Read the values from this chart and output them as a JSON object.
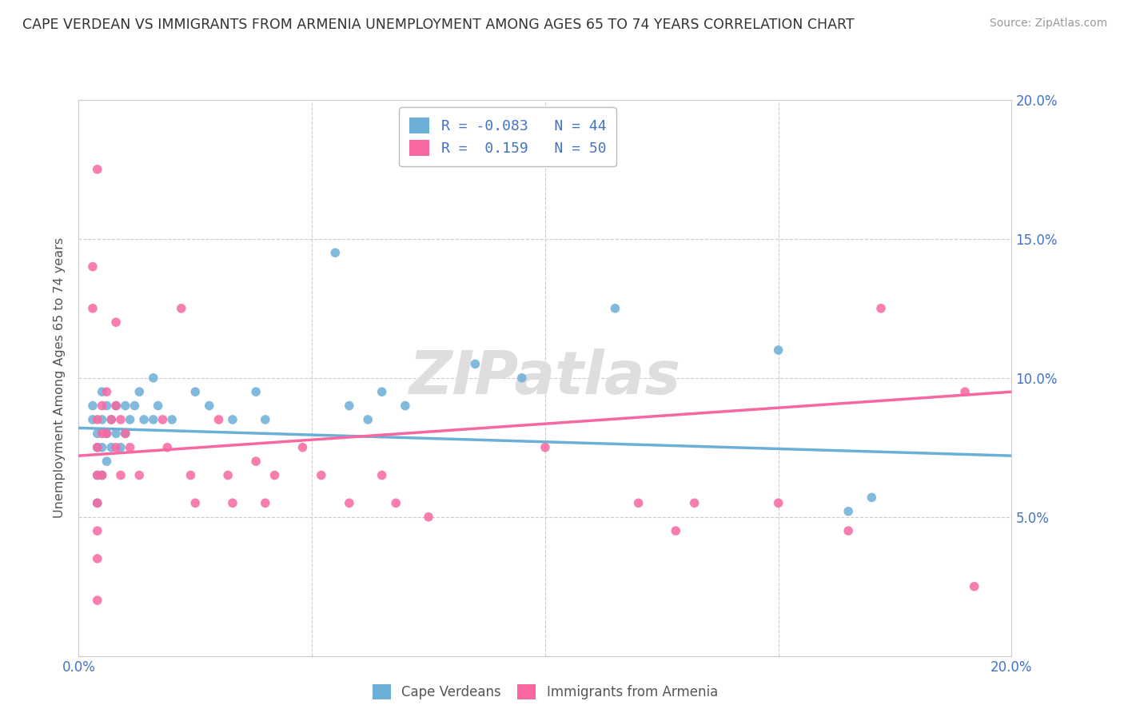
{
  "title": "CAPE VERDEAN VS IMMIGRANTS FROM ARMENIA UNEMPLOYMENT AMONG AGES 65 TO 74 YEARS CORRELATION CHART",
  "source": "Source: ZipAtlas.com",
  "ylabel": "Unemployment Among Ages 65 to 74 years",
  "xlim": [
    0.0,
    0.2
  ],
  "ylim": [
    0.0,
    0.2
  ],
  "legend_r1": "-0.083",
  "legend_n1": "44",
  "legend_r2": "0.159",
  "legend_n2": "50",
  "color_blue": "#6baed6",
  "color_pink": "#f768a1",
  "watermark": "ZIPatlas",
  "blue_scatter": [
    [
      0.003,
      0.085
    ],
    [
      0.003,
      0.09
    ],
    [
      0.004,
      0.075
    ],
    [
      0.004,
      0.08
    ],
    [
      0.004,
      0.065
    ],
    [
      0.004,
      0.055
    ],
    [
      0.005,
      0.095
    ],
    [
      0.005,
      0.085
    ],
    [
      0.005,
      0.075
    ],
    [
      0.005,
      0.065
    ],
    [
      0.006,
      0.09
    ],
    [
      0.006,
      0.08
    ],
    [
      0.006,
      0.07
    ],
    [
      0.007,
      0.085
    ],
    [
      0.007,
      0.075
    ],
    [
      0.008,
      0.09
    ],
    [
      0.008,
      0.08
    ],
    [
      0.009,
      0.075
    ],
    [
      0.01,
      0.09
    ],
    [
      0.01,
      0.08
    ],
    [
      0.011,
      0.085
    ],
    [
      0.012,
      0.09
    ],
    [
      0.013,
      0.095
    ],
    [
      0.014,
      0.085
    ],
    [
      0.016,
      0.1
    ],
    [
      0.016,
      0.085
    ],
    [
      0.017,
      0.09
    ],
    [
      0.02,
      0.085
    ],
    [
      0.025,
      0.095
    ],
    [
      0.028,
      0.09
    ],
    [
      0.033,
      0.085
    ],
    [
      0.038,
      0.095
    ],
    [
      0.04,
      0.085
    ],
    [
      0.055,
      0.145
    ],
    [
      0.058,
      0.09
    ],
    [
      0.062,
      0.085
    ],
    [
      0.065,
      0.095
    ],
    [
      0.07,
      0.09
    ],
    [
      0.085,
      0.105
    ],
    [
      0.095,
      0.1
    ],
    [
      0.115,
      0.125
    ],
    [
      0.15,
      0.11
    ],
    [
      0.165,
      0.052
    ],
    [
      0.17,
      0.057
    ]
  ],
  "pink_scatter": [
    [
      0.003,
      0.14
    ],
    [
      0.003,
      0.125
    ],
    [
      0.004,
      0.175
    ],
    [
      0.004,
      0.085
    ],
    [
      0.004,
      0.075
    ],
    [
      0.004,
      0.065
    ],
    [
      0.004,
      0.055
    ],
    [
      0.004,
      0.045
    ],
    [
      0.004,
      0.035
    ],
    [
      0.004,
      0.02
    ],
    [
      0.005,
      0.09
    ],
    [
      0.005,
      0.08
    ],
    [
      0.005,
      0.065
    ],
    [
      0.006,
      0.095
    ],
    [
      0.006,
      0.08
    ],
    [
      0.007,
      0.085
    ],
    [
      0.008,
      0.12
    ],
    [
      0.008,
      0.09
    ],
    [
      0.008,
      0.075
    ],
    [
      0.009,
      0.065
    ],
    [
      0.009,
      0.085
    ],
    [
      0.01,
      0.08
    ],
    [
      0.011,
      0.075
    ],
    [
      0.013,
      0.065
    ],
    [
      0.018,
      0.085
    ],
    [
      0.019,
      0.075
    ],
    [
      0.022,
      0.125
    ],
    [
      0.024,
      0.065
    ],
    [
      0.025,
      0.055
    ],
    [
      0.03,
      0.085
    ],
    [
      0.032,
      0.065
    ],
    [
      0.033,
      0.055
    ],
    [
      0.038,
      0.07
    ],
    [
      0.04,
      0.055
    ],
    [
      0.042,
      0.065
    ],
    [
      0.048,
      0.075
    ],
    [
      0.052,
      0.065
    ],
    [
      0.058,
      0.055
    ],
    [
      0.065,
      0.065
    ],
    [
      0.068,
      0.055
    ],
    [
      0.075,
      0.05
    ],
    [
      0.1,
      0.075
    ],
    [
      0.12,
      0.055
    ],
    [
      0.128,
      0.045
    ],
    [
      0.132,
      0.055
    ],
    [
      0.15,
      0.055
    ],
    [
      0.165,
      0.045
    ],
    [
      0.172,
      0.125
    ],
    [
      0.19,
      0.095
    ],
    [
      0.192,
      0.025
    ]
  ],
  "blue_trend": [
    0.0,
    0.2,
    0.082,
    0.072
  ],
  "pink_trend": [
    0.0,
    0.2,
    0.072,
    0.095
  ]
}
